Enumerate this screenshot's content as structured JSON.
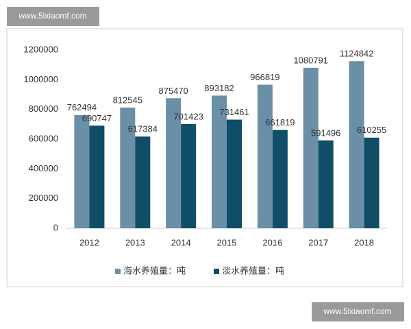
{
  "watermarks": [
    "www.5lxiaomf.com",
    "www.5lxiaomf.com"
  ],
  "chart_data": {
    "type": "bar",
    "categories": [
      "2012",
      "2013",
      "2014",
      "2015",
      "2016",
      "2017",
      "2018"
    ],
    "series": [
      {
        "name": "海水养殖量：吨",
        "color": "#6a8fa7",
        "values": [
          762494,
          812545,
          875470,
          893182,
          966819,
          1080791,
          1124842
        ]
      },
      {
        "name": "淡水养殖量：吨",
        "color": "#0f4e66",
        "values": [
          690747,
          617384,
          701423,
          731461,
          661819,
          591496,
          610255
        ]
      }
    ],
    "ylim": [
      0,
      1200000
    ],
    "yticks": [
      0,
      200000,
      400000,
      600000,
      800000,
      1000000,
      1200000
    ],
    "grid": false,
    "legend": "bottom"
  }
}
